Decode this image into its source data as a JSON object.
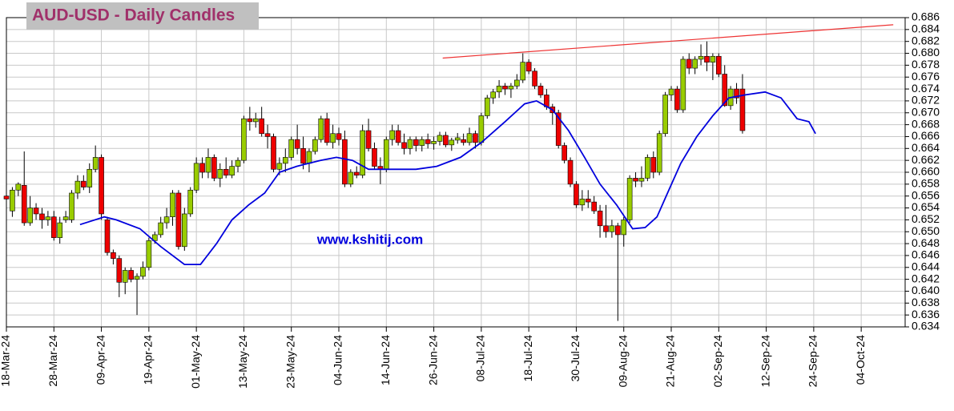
{
  "chart_data": {
    "type": "candlestick",
    "title": "AUD-USD - Daily Candles",
    "watermark": "www.kshitij.com",
    "xlim": [
      0,
      151.4
    ],
    "ylim": [
      0.634,
      0.686
    ],
    "yticks": [
      0.634,
      0.636,
      0.638,
      {
        "value": 0.64,
        "label": "0.640"
      },
      0.642,
      0.644,
      0.646,
      0.648,
      {
        "value": 0.65,
        "label": "0.650"
      },
      0.652,
      0.654,
      0.656,
      0.658,
      {
        "value": 0.66,
        "label": "0.660"
      },
      0.662,
      0.664,
      0.666,
      0.668,
      {
        "value": 0.67,
        "label": "0.670"
      },
      0.672,
      0.674,
      0.676,
      0.678,
      {
        "value": 0.68,
        "label": "0.680"
      },
      0.682,
      0.684,
      0.686
    ],
    "xticks": [
      {
        "value": 0,
        "label": "18-Mar-24"
      },
      {
        "value": 8,
        "label": "28-Mar-24"
      },
      {
        "value": 16,
        "label": "09-Apr-24"
      },
      {
        "value": 24,
        "label": "19-Apr-24"
      },
      {
        "value": 32,
        "label": "01-May-24"
      },
      {
        "value": 40,
        "label": "13-May-24"
      },
      {
        "value": 48,
        "label": "23-May-24"
      },
      {
        "value": 56,
        "label": "04-Jun-24"
      },
      {
        "value": 64,
        "label": "14-Jun-24"
      },
      {
        "value": 72,
        "label": "26-Jun-24"
      },
      {
        "value": 80,
        "label": "08-Jul-24"
      },
      {
        "value": 88,
        "label": "18-Jul-24"
      },
      {
        "value": 96,
        "label": "30-Jul-24"
      },
      {
        "value": 104,
        "label": "09-Aug-24"
      },
      {
        "value": 112,
        "label": "21-Aug-24"
      },
      {
        "value": 120,
        "label": "02-Sep-24"
      },
      {
        "value": 128,
        "label": "12-Sep-24"
      },
      {
        "value": 136,
        "label": "24-Sep-24"
      },
      {
        "value": 144,
        "label": "04-Oct-24"
      }
    ],
    "grid": true,
    "up_color": "#99cc00",
    "down_color": "#ee0000",
    "x": [
      0,
      1,
      2,
      3,
      4,
      5,
      6,
      7,
      8,
      9,
      10,
      11,
      12,
      13,
      14,
      15,
      16,
      17,
      18,
      19,
      20,
      21,
      22,
      23,
      24,
      25,
      26,
      27,
      28,
      29,
      30,
      31,
      32,
      33,
      34,
      35,
      36,
      37,
      38,
      39,
      40,
      41,
      42,
      43,
      44,
      45,
      46,
      47,
      48,
      49,
      50,
      51,
      52,
      53,
      54,
      55,
      56,
      57,
      58,
      59,
      60,
      61,
      62,
      63,
      64,
      65,
      66,
      67,
      68,
      69,
      70,
      71,
      72,
      73,
      74,
      75,
      76,
      77,
      78,
      79,
      80,
      81,
      82,
      83,
      84,
      85,
      86,
      87,
      88,
      89,
      90,
      91,
      92,
      93,
      94,
      95,
      96,
      97,
      98,
      99,
      100,
      101,
      102,
      103,
      104,
      105,
      106,
      107,
      108,
      109,
      110,
      111,
      112,
      113,
      114,
      115,
      116,
      117,
      118,
      119,
      120,
      121,
      122,
      123,
      124
    ],
    "ohlc": [
      [
        0.656,
        0.6568,
        0.6548,
        0.6555
      ],
      [
        0.6535,
        0.6575,
        0.6525,
        0.657
      ],
      [
        0.657,
        0.6583,
        0.656,
        0.658
      ],
      [
        0.6578,
        0.6635,
        0.651,
        0.6515
      ],
      [
        0.6515,
        0.656,
        0.651,
        0.654
      ],
      [
        0.654,
        0.6548,
        0.652,
        0.653
      ],
      [
        0.653,
        0.654,
        0.6505,
        0.652
      ],
      [
        0.652,
        0.6535,
        0.651,
        0.6525
      ],
      [
        0.6525,
        0.6535,
        0.6485,
        0.649
      ],
      [
        0.649,
        0.6525,
        0.648,
        0.6515
      ],
      [
        0.652,
        0.6535,
        0.6515,
        0.6525
      ],
      [
        0.652,
        0.657,
        0.6515,
        0.6565
      ],
      [
        0.6565,
        0.6595,
        0.6555,
        0.6585
      ],
      [
        0.6585,
        0.6595,
        0.657,
        0.6575
      ],
      [
        0.6575,
        0.6615,
        0.6565,
        0.6605
      ],
      [
        0.6605,
        0.6645,
        0.66,
        0.6625
      ],
      [
        0.6625,
        0.663,
        0.652,
        0.653
      ],
      [
        0.652,
        0.6525,
        0.646,
        0.6465
      ],
      [
        0.6465,
        0.647,
        0.6445,
        0.6455
      ],
      [
        0.6455,
        0.646,
        0.639,
        0.6415
      ],
      [
        0.6415,
        0.644,
        0.6395,
        0.6435
      ],
      [
        0.6435,
        0.644,
        0.6415,
        0.642
      ],
      [
        0.642,
        0.643,
        0.636,
        0.6425
      ],
      [
        0.6425,
        0.645,
        0.642,
        0.644
      ],
      [
        0.644,
        0.649,
        0.6435,
        0.6485
      ],
      [
        0.6485,
        0.65,
        0.648,
        0.6495
      ],
      [
        0.6495,
        0.6525,
        0.649,
        0.6515
      ],
      [
        0.6515,
        0.654,
        0.6505,
        0.6525
      ],
      [
        0.6525,
        0.657,
        0.651,
        0.6565
      ],
      [
        0.6565,
        0.657,
        0.647,
        0.6475
      ],
      [
        0.6475,
        0.654,
        0.6468,
        0.653
      ],
      [
        0.653,
        0.6575,
        0.6525,
        0.657
      ],
      [
        0.657,
        0.6625,
        0.6565,
        0.6615
      ],
      [
        0.6615,
        0.6625,
        0.659,
        0.66
      ],
      [
        0.66,
        0.664,
        0.659,
        0.6625
      ],
      [
        0.6625,
        0.663,
        0.6585,
        0.659
      ],
      [
        0.659,
        0.6615,
        0.6575,
        0.6605
      ],
      [
        0.6605,
        0.6625,
        0.659,
        0.6595
      ],
      [
        0.6595,
        0.662,
        0.659,
        0.661
      ],
      [
        0.661,
        0.6625,
        0.66,
        0.662
      ],
      [
        0.662,
        0.6695,
        0.6615,
        0.669
      ],
      [
        0.669,
        0.671,
        0.667,
        0.6685
      ],
      [
        0.6685,
        0.67,
        0.6675,
        0.669
      ],
      [
        0.669,
        0.671,
        0.666,
        0.6665
      ],
      [
        0.6665,
        0.668,
        0.664,
        0.666
      ],
      [
        0.666,
        0.6665,
        0.66,
        0.6605
      ],
      [
        0.6605,
        0.6625,
        0.6595,
        0.6615
      ],
      [
        0.6615,
        0.664,
        0.66,
        0.6625
      ],
      [
        0.6625,
        0.666,
        0.662,
        0.6655
      ],
      [
        0.6655,
        0.668,
        0.663,
        0.664
      ],
      [
        0.664,
        0.666,
        0.6605,
        0.6615
      ],
      [
        0.6615,
        0.664,
        0.66,
        0.6635
      ],
      [
        0.6635,
        0.666,
        0.663,
        0.6655
      ],
      [
        0.6655,
        0.6695,
        0.665,
        0.669
      ],
      [
        0.669,
        0.67,
        0.6645,
        0.665
      ],
      [
        0.665,
        0.668,
        0.664,
        0.6665
      ],
      [
        0.6665,
        0.6675,
        0.6645,
        0.6655
      ],
      [
        0.6655,
        0.667,
        0.6575,
        0.658
      ],
      [
        0.658,
        0.6605,
        0.6575,
        0.66
      ],
      [
        0.66,
        0.661,
        0.659,
        0.6595
      ],
      [
        0.6595,
        0.668,
        0.659,
        0.667
      ],
      [
        0.667,
        0.669,
        0.6635,
        0.664
      ],
      [
        0.664,
        0.665,
        0.6605,
        0.661
      ],
      [
        0.661,
        0.6625,
        0.658,
        0.6605
      ],
      [
        0.6605,
        0.666,
        0.66,
        0.6655
      ],
      [
        0.6655,
        0.668,
        0.6645,
        0.667
      ],
      [
        0.667,
        0.668,
        0.6645,
        0.665
      ],
      [
        0.665,
        0.6665,
        0.663,
        0.664
      ],
      [
        0.664,
        0.666,
        0.663,
        0.6655
      ],
      [
        0.6655,
        0.666,
        0.6635,
        0.6645
      ],
      [
        0.6645,
        0.666,
        0.6635,
        0.6655
      ],
      [
        0.6655,
        0.6665,
        0.664,
        0.6648
      ],
      [
        0.6648,
        0.666,
        0.6638,
        0.6652
      ],
      [
        0.6652,
        0.6668,
        0.6645,
        0.6662
      ],
      [
        0.6662,
        0.6668,
        0.6642,
        0.6646
      ],
      [
        0.6646,
        0.6658,
        0.6636,
        0.6654
      ],
      [
        0.6654,
        0.6666,
        0.6648,
        0.6658
      ],
      [
        0.6655,
        0.6665,
        0.6645,
        0.665
      ],
      [
        0.665,
        0.6675,
        0.6645,
        0.6665
      ],
      [
        0.6665,
        0.667,
        0.664,
        0.665
      ],
      [
        0.665,
        0.67,
        0.6645,
        0.6695
      ],
      [
        0.6695,
        0.673,
        0.669,
        0.6725
      ],
      [
        0.6725,
        0.674,
        0.6715,
        0.6735
      ],
      [
        0.6735,
        0.6755,
        0.6725,
        0.6745
      ],
      [
        0.6745,
        0.675,
        0.673,
        0.674
      ],
      [
        0.674,
        0.675,
        0.6725,
        0.6745
      ],
      [
        0.6745,
        0.6765,
        0.674,
        0.6755
      ],
      [
        0.6755,
        0.68,
        0.675,
        0.6785
      ],
      [
        0.6785,
        0.679,
        0.6765,
        0.677
      ],
      [
        0.677,
        0.6775,
        0.674,
        0.6745
      ],
      [
        0.6745,
        0.675,
        0.6725,
        0.673
      ],
      [
        0.673,
        0.674,
        0.6705,
        0.671
      ],
      [
        0.671,
        0.6715,
        0.668,
        0.67
      ],
      [
        0.67,
        0.6705,
        0.664,
        0.6645
      ],
      [
        0.6645,
        0.665,
        0.6615,
        0.662
      ],
      [
        0.662,
        0.6625,
        0.6575,
        0.658
      ],
      [
        0.658,
        0.6585,
        0.654,
        0.6545
      ],
      [
        0.6545,
        0.657,
        0.6535,
        0.6555
      ],
      [
        0.6555,
        0.657,
        0.654,
        0.655
      ],
      [
        0.655,
        0.656,
        0.653,
        0.6535
      ],
      [
        0.6535,
        0.6545,
        0.649,
        0.651
      ],
      [
        0.651,
        0.6545,
        0.649,
        0.65
      ],
      [
        0.65,
        0.652,
        0.649,
        0.651
      ],
      [
        0.651,
        0.6515,
        0.635,
        0.6495
      ],
      [
        0.6495,
        0.6525,
        0.6475,
        0.652
      ],
      [
        0.652,
        0.6595,
        0.6515,
        0.659
      ],
      [
        0.659,
        0.66,
        0.6575,
        0.6585
      ],
      [
        0.6585,
        0.661,
        0.6575,
        0.659
      ],
      [
        0.659,
        0.663,
        0.6585,
        0.6625
      ],
      [
        0.6625,
        0.6635,
        0.659,
        0.66
      ],
      [
        0.66,
        0.667,
        0.6595,
        0.6665
      ],
      [
        0.6665,
        0.6735,
        0.666,
        0.673
      ],
      [
        0.673,
        0.6745,
        0.672,
        0.674
      ],
      [
        0.674,
        0.6745,
        0.67,
        0.6705
      ],
      [
        0.6705,
        0.6795,
        0.67,
        0.679
      ],
      [
        0.679,
        0.68,
        0.6765,
        0.6775
      ],
      [
        0.6775,
        0.6795,
        0.6765,
        0.679
      ],
      [
        0.679,
        0.6815,
        0.678,
        0.6795
      ],
      [
        0.6795,
        0.682,
        0.677,
        0.6785
      ],
      [
        0.6785,
        0.68,
        0.6755,
        0.6795
      ],
      [
        0.6795,
        0.68,
        0.676,
        0.6765
      ],
      [
        0.6765,
        0.678,
        0.671,
        0.6712
      ],
      [
        0.6712,
        0.6745,
        0.6705,
        0.674
      ],
      [
        0.674,
        0.675,
        0.6715,
        0.6725
      ],
      [
        0.674,
        0.6765,
        0.6665,
        0.667
      ]
    ],
    "moving_average": {
      "color": "#0000dd",
      "x": [
        12.4,
        16.5,
        18.5,
        22.5,
        26,
        30,
        32.7,
        35.4,
        38,
        40.8,
        43.5,
        46,
        48.9,
        52.9,
        55.6,
        58.3,
        61,
        65,
        69,
        72.5,
        76.5,
        80,
        84,
        87.3,
        89.3,
        92,
        94.7,
        97.4,
        100,
        102.8,
        105.5,
        107.6,
        109.6,
        111.6,
        113.6,
        116.3,
        119,
        121.7,
        124.4,
        127.8,
        130.5,
        133.2,
        135.2,
        136.3
      ],
      "values": [
        0.6512,
        0.6525,
        0.652,
        0.6505,
        0.6475,
        0.6445,
        0.6445,
        0.648,
        0.652,
        0.6545,
        0.6565,
        0.66,
        0.661,
        0.662,
        0.6625,
        0.662,
        0.6605,
        0.6605,
        0.6605,
        0.661,
        0.6625,
        0.665,
        0.6685,
        0.6715,
        0.672,
        0.6705,
        0.667,
        0.6625,
        0.658,
        0.6545,
        0.6505,
        0.6507,
        0.6525,
        0.657,
        0.6615,
        0.666,
        0.6695,
        0.6725,
        0.673,
        0.6735,
        0.6725,
        0.669,
        0.6685,
        0.6665
      ]
    },
    "trendline": {
      "color": "#ee3333",
      "x": [
        73.5,
        149.4
      ],
      "values": [
        0.6792,
        0.6848
      ]
    }
  }
}
